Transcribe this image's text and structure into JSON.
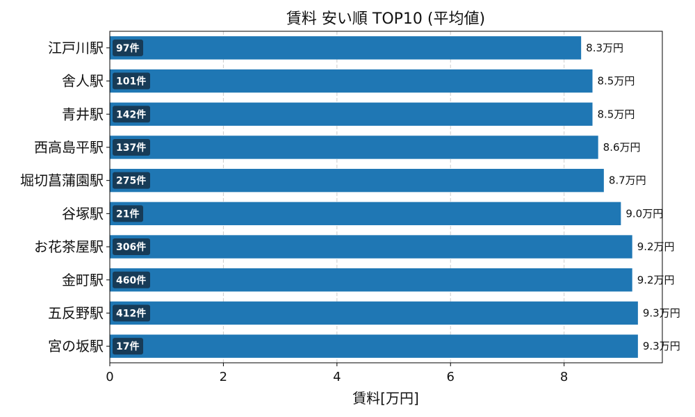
{
  "chart_data": {
    "type": "bar",
    "orientation": "horizontal",
    "title": "賃料 安い順 TOP10 (平均値)",
    "xlabel": "賃料[万円]",
    "ylabel": "",
    "xlim": [
      0,
      9.73
    ],
    "xticks": [
      0,
      2,
      4,
      6,
      8
    ],
    "grid": "x-dashed",
    "value_suffix": "万円",
    "count_suffix": "件",
    "bar_color": "#1f77b4",
    "count_badge_color": "#173b57",
    "categories": [
      "江戸川駅",
      "舎人駅",
      "青井駅",
      "西高島平駅",
      "堀切菖蒲園駅",
      "谷塚駅",
      "お花茶屋駅",
      "金町駅",
      "五反野駅",
      "宮の坂駅"
    ],
    "values": [
      8.3,
      8.5,
      8.5,
      8.6,
      8.7,
      9.0,
      9.2,
      9.2,
      9.3,
      9.3
    ],
    "value_labels": [
      "8.3万円",
      "8.5万円",
      "8.5万円",
      "8.6万円",
      "8.7万円",
      "9.0万円",
      "9.2万円",
      "9.2万円",
      "9.3万円",
      "9.3万円"
    ],
    "counts": [
      97,
      101,
      142,
      137,
      275,
      21,
      306,
      460,
      412,
      17
    ],
    "count_labels": [
      "97件",
      "101件",
      "142件",
      "137件",
      "275件",
      "21件",
      "306件",
      "460件",
      "412件",
      "17件"
    ]
  }
}
